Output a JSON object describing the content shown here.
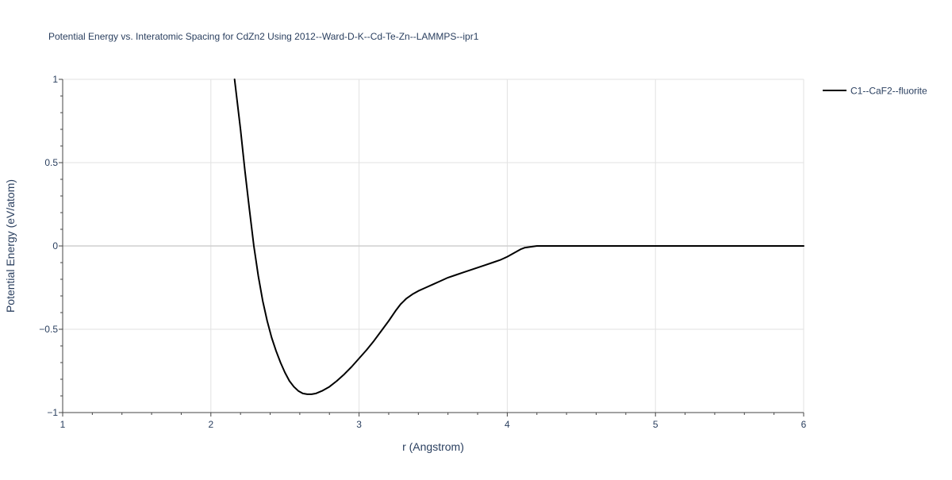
{
  "chart_data": {
    "type": "line",
    "title": "Potential Energy vs. Interatomic Spacing for CdZn2 Using 2012--Ward-D-K--Cd-Te-Zn--LAMMPS--ipr1",
    "xlabel": "r (Angstrom)",
    "ylabel": "Potential Energy (eV/atom)",
    "xlim": [
      1,
      6
    ],
    "ylim": [
      -1,
      1
    ],
    "x_ticks": [
      1,
      2,
      3,
      4,
      5,
      6
    ],
    "x_tick_labels": [
      "1",
      "2",
      "3",
      "4",
      "5",
      "6"
    ],
    "y_ticks": [
      -1,
      -0.5,
      0,
      0.5,
      1
    ],
    "y_tick_labels": [
      "−1",
      "−0.5",
      "0",
      "0.5",
      "1"
    ],
    "grid": true,
    "legend_position": "top-right outside",
    "series": [
      {
        "name": "C1--CaF2--fluorite",
        "color": "#000000",
        "x": [
          2.16,
          2.2,
          2.23,
          2.26,
          2.29,
          2.32,
          2.35,
          2.38,
          2.41,
          2.44,
          2.47,
          2.5,
          2.53,
          2.56,
          2.59,
          2.62,
          2.65,
          2.68,
          2.71,
          2.75,
          2.8,
          2.85,
          2.9,
          2.95,
          3.0,
          3.05,
          3.1,
          3.15,
          3.2,
          3.25,
          3.28,
          3.32,
          3.36,
          3.4,
          3.45,
          3.5,
          3.55,
          3.6,
          3.65,
          3.7,
          3.75,
          3.8,
          3.85,
          3.9,
          3.95,
          4.0,
          4.03,
          4.06,
          4.09,
          4.12,
          4.2,
          4.5,
          5.0,
          5.5,
          6.0
        ],
        "y": [
          1.0,
          0.7,
          0.45,
          0.22,
          0.0,
          -0.18,
          -0.33,
          -0.45,
          -0.55,
          -0.63,
          -0.7,
          -0.76,
          -0.81,
          -0.845,
          -0.87,
          -0.885,
          -0.89,
          -0.89,
          -0.885,
          -0.87,
          -0.845,
          -0.81,
          -0.77,
          -0.725,
          -0.675,
          -0.625,
          -0.57,
          -0.51,
          -0.45,
          -0.385,
          -0.35,
          -0.315,
          -0.29,
          -0.27,
          -0.25,
          -0.23,
          -0.21,
          -0.19,
          -0.175,
          -0.16,
          -0.145,
          -0.13,
          -0.115,
          -0.1,
          -0.085,
          -0.065,
          -0.05,
          -0.035,
          -0.02,
          -0.01,
          0.0,
          0.0,
          0.0,
          0.0,
          0.0
        ]
      }
    ]
  }
}
